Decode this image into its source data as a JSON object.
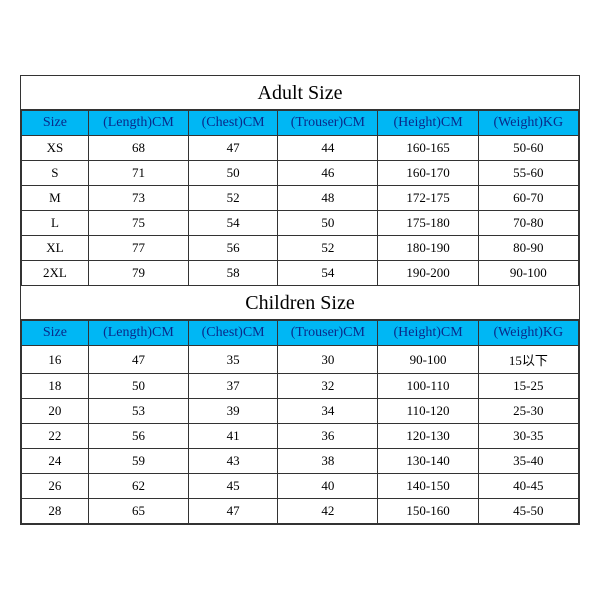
{
  "colors": {
    "header_bg": "#00b7f4",
    "header_text": "#0a2a8a",
    "border": "#333333",
    "background": "#ffffff",
    "cell_text": "#000000"
  },
  "typography": {
    "title_fontsize": 20,
    "header_fontsize": 14,
    "cell_fontsize": 13,
    "font_family": "Times New Roman"
  },
  "columns": [
    "Size",
    "(Length)CM",
    "(Chest)CM",
    "(Trouser)CM",
    "(Height)CM",
    "(Weight)KG"
  ],
  "column_widths_pct": [
    12,
    18,
    16,
    18,
    18,
    18
  ],
  "adult": {
    "title": "Adult Size",
    "rows": [
      [
        "XS",
        "68",
        "47",
        "44",
        "160-165",
        "50-60"
      ],
      [
        "S",
        "71",
        "50",
        "46",
        "160-170",
        "55-60"
      ],
      [
        "M",
        "73",
        "52",
        "48",
        "172-175",
        "60-70"
      ],
      [
        "L",
        "75",
        "54",
        "50",
        "175-180",
        "70-80"
      ],
      [
        "XL",
        "77",
        "56",
        "52",
        "180-190",
        "80-90"
      ],
      [
        "2XL",
        "79",
        "58",
        "54",
        "190-200",
        "90-100"
      ]
    ]
  },
  "children": {
    "title": "Children Size",
    "rows": [
      [
        "16",
        "47",
        "35",
        "30",
        "90-100",
        "15以下"
      ],
      [
        "18",
        "50",
        "37",
        "32",
        "100-110",
        "15-25"
      ],
      [
        "20",
        "53",
        "39",
        "34",
        "110-120",
        "25-30"
      ],
      [
        "22",
        "56",
        "41",
        "36",
        "120-130",
        "30-35"
      ],
      [
        "24",
        "59",
        "43",
        "38",
        "130-140",
        "35-40"
      ],
      [
        "26",
        "62",
        "45",
        "40",
        "140-150",
        "40-45"
      ],
      [
        "28",
        "65",
        "47",
        "42",
        "150-160",
        "45-50"
      ]
    ]
  }
}
